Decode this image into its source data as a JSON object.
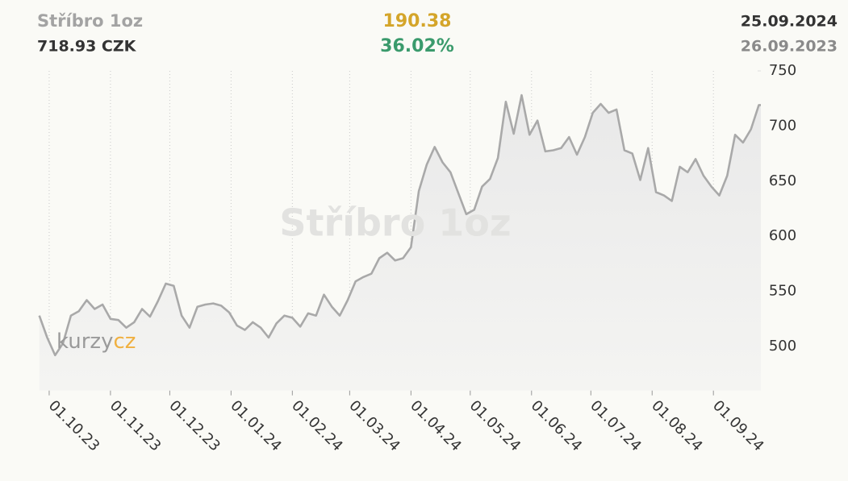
{
  "chart_data": {
    "type": "line",
    "title": "Stříbro 1oz",
    "price": "718.93 CZK",
    "change": "190.38",
    "change_percent": "36.02%",
    "date_end": "25.09.2024",
    "date_start": "26.09.2023",
    "watermark": "Stříbro 1oz",
    "logo": [
      "kurzy",
      "cz"
    ],
    "color": "#a9a9a9",
    "grid": true,
    "ylim": [
      460,
      750
    ],
    "yticks": [
      500,
      550,
      600,
      650,
      700,
      750
    ],
    "xlim": [
      "2023-09-26",
      "2024-09-25"
    ],
    "xticks": [
      {
        "value": "2023-10-01",
        "label": "01.10.23"
      },
      {
        "value": "2023-11-01",
        "label": "01.11.23"
      },
      {
        "value": "2023-12-01",
        "label": "01.12.23"
      },
      {
        "value": "2024-01-01",
        "label": "01.01.24"
      },
      {
        "value": "2024-02-01",
        "label": "01.02.24"
      },
      {
        "value": "2024-03-01",
        "label": "01.03.24"
      },
      {
        "value": "2024-04-01",
        "label": "01.04.24"
      },
      {
        "value": "2024-05-01",
        "label": "01.05.24"
      },
      {
        "value": "2024-06-01",
        "label": "01.06.24"
      },
      {
        "value": "2024-07-01",
        "label": "01.07.24"
      },
      {
        "value": "2024-08-01",
        "label": "01.08.24"
      },
      {
        "value": "2024-09-01",
        "label": "01.09.24"
      }
    ],
    "x": [
      "2023-09-26",
      "2023-09-30",
      "2023-10-04",
      "2023-10-08",
      "2023-10-12",
      "2023-10-16",
      "2023-10-20",
      "2023-10-24",
      "2023-10-28",
      "2023-11-01",
      "2023-11-05",
      "2023-11-09",
      "2023-11-13",
      "2023-11-17",
      "2023-11-21",
      "2023-11-25",
      "2023-11-29",
      "2023-12-03",
      "2023-12-07",
      "2023-12-11",
      "2023-12-15",
      "2023-12-19",
      "2023-12-23",
      "2023-12-27",
      "2023-12-31",
      "2024-01-04",
      "2024-01-08",
      "2024-01-12",
      "2024-01-16",
      "2024-01-20",
      "2024-01-24",
      "2024-01-28",
      "2024-02-01",
      "2024-02-05",
      "2024-02-09",
      "2024-02-13",
      "2024-02-17",
      "2024-02-21",
      "2024-02-25",
      "2024-02-29",
      "2024-03-04",
      "2024-03-08",
      "2024-03-12",
      "2024-03-16",
      "2024-03-20",
      "2024-03-24",
      "2024-03-28",
      "2024-04-01",
      "2024-04-05",
      "2024-04-09",
      "2024-04-13",
      "2024-04-17",
      "2024-04-21",
      "2024-04-25",
      "2024-04-29",
      "2024-05-03",
      "2024-05-07",
      "2024-05-11",
      "2024-05-15",
      "2024-05-19",
      "2024-05-23",
      "2024-05-27",
      "2024-05-31",
      "2024-06-04",
      "2024-06-08",
      "2024-06-12",
      "2024-06-16",
      "2024-06-20",
      "2024-06-24",
      "2024-06-28",
      "2024-07-02",
      "2024-07-06",
      "2024-07-10",
      "2024-07-14",
      "2024-07-18",
      "2024-07-22",
      "2024-07-26",
      "2024-07-30",
      "2024-08-03",
      "2024-08-07",
      "2024-08-11",
      "2024-08-15",
      "2024-08-19",
      "2024-08-23",
      "2024-08-27",
      "2024-08-31",
      "2024-09-04",
      "2024-09-08",
      "2024-09-12",
      "2024-09-16",
      "2024-09-20",
      "2024-09-24",
      "2024-09-25"
    ],
    "values": [
      528,
      508,
      492,
      503,
      528,
      532,
      542,
      534,
      538,
      525,
      524,
      517,
      522,
      534,
      527,
      541,
      557,
      555,
      528,
      517,
      536,
      538,
      539,
      537,
      531,
      519,
      515,
      522,
      517,
      508,
      521,
      528,
      526,
      518,
      530,
      528,
      547,
      536,
      528,
      542,
      559,
      563,
      566,
      580,
      585,
      578,
      580,
      590,
      641,
      665,
      681,
      667,
      658,
      639,
      620,
      624,
      645,
      652,
      671,
      722,
      693,
      728,
      692,
      705,
      677,
      678,
      680,
      690,
      674,
      690,
      712,
      720,
      712,
      715,
      678,
      675,
      651,
      680,
      640,
      637,
      632,
      663,
      658,
      670,
      655,
      645,
      637,
      655,
      692,
      685,
      697,
      719,
      719
    ]
  }
}
